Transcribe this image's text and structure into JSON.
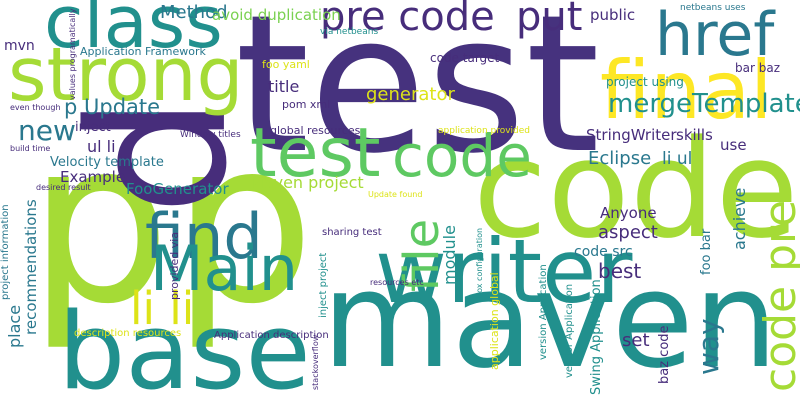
{
  "words": [
    "test",
    "p",
    "p",
    "p",
    "code",
    "maven",
    "strong",
    "class",
    "final",
    "writer",
    "base",
    "test",
    "code",
    "find",
    "Main",
    "li li",
    "href",
    "pre code",
    "put",
    "mergeTemplate",
    "code pre",
    "file",
    "new",
    "Method",
    "avoid duplication",
    "public",
    "netbeans uses",
    "mvn",
    "Application Framework",
    "p Update",
    "inject",
    "ul li",
    "Velocity template",
    "Example",
    "FooGenerator",
    "title",
    "pom xml",
    "foo yaml",
    "code target",
    "generator",
    "project using",
    "bar baz",
    "global resources",
    "StringWriter",
    "skills",
    "Eclipse",
    "li ul",
    "use",
    "Maven project",
    "module",
    "aspect",
    "Anyone",
    "best",
    "code src",
    "achieve",
    "way",
    "foo bar",
    "place",
    "recommendations",
    "project information",
    "Application description",
    "description resources",
    "set",
    "baz code",
    "Swing Application",
    "vendor Application",
    "application global",
    "version Application",
    "sharing test",
    "inject project",
    "provided via",
    "Update found",
    "application provided",
    "stackoverflow",
    "Window titles",
    "even though",
    "build time",
    "desired result",
    "values programatically",
    "box configuration",
    "resources etc",
    "via netbeans"
  ]
}
